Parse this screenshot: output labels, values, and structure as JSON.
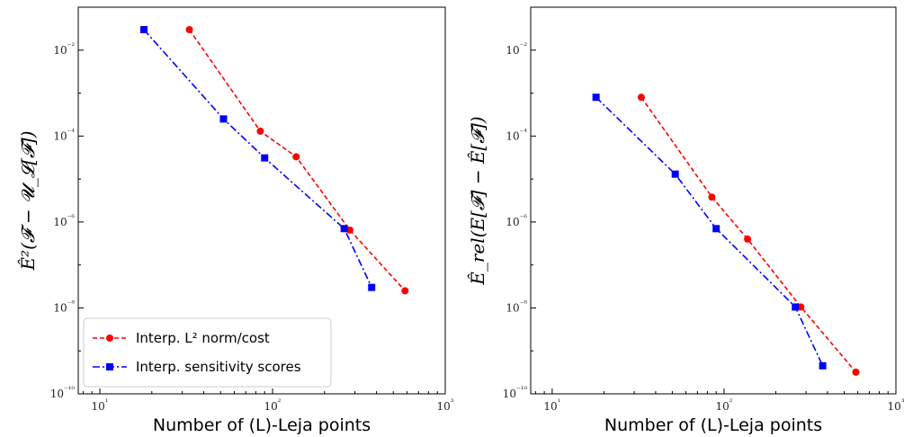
{
  "chart_data": [
    {
      "type": "line",
      "xlabel": "Number of (L)-Leja points",
      "ylabel": "Ê²(𝓕 − 𝓤_𝓛[𝓕])",
      "xscale": "log",
      "yscale": "log",
      "xlim": [
        7.5,
        1000
      ],
      "ylim": [
        1e-10,
        0.1
      ],
      "xticks": [
        "10¹",
        "10²",
        "10³"
      ],
      "yticks": [
        "10⁻¹⁰",
        "10⁻⁸",
        "10⁻⁶",
        "10⁻⁴",
        "10⁻²"
      ],
      "grid": false,
      "legend": "bottom-left",
      "series": [
        {
          "name": "Interp. L² norm/cost",
          "color": "#ff0000",
          "marker": "circle",
          "linestyle": "dashed",
          "x": [
            33,
            85,
            137,
            280,
            585
          ],
          "y": [
            0.03,
            0.00013,
            3.3e-05,
            6.5e-07,
            2.5e-08
          ]
        },
        {
          "name": "Interp. sensitivity scores",
          "color": "#0000ff",
          "marker": "square",
          "linestyle": "dashdot",
          "x": [
            18,
            52,
            90,
            260,
            375
          ],
          "y": [
            0.03,
            0.00025,
            3.1e-05,
            7e-07,
            3e-08
          ]
        }
      ]
    },
    {
      "type": "line",
      "xlabel": "Number of (L)-Leja points",
      "ylabel": "Ê_rel(E[𝓕] − Ê[𝓕])",
      "xscale": "log",
      "yscale": "log",
      "xlim": [
        7.5,
        1000
      ],
      "ylim": [
        1e-10,
        0.1
      ],
      "xticks": [
        "10¹",
        "10²",
        "10³"
      ],
      "yticks": [
        "10⁻¹⁰",
        "10⁻⁸",
        "10⁻⁶",
        "10⁻⁴",
        "10⁻²"
      ],
      "grid": false,
      "legend": "none",
      "series": [
        {
          "color": "#ff0000",
          "marker": "circle",
          "linestyle": "dashed",
          "x": [
            33,
            85,
            137,
            280,
            585
          ],
          "y": [
            0.0008,
            3.8e-06,
            4e-07,
            1.05e-08,
            3.2e-10
          ]
        },
        {
          "color": "#0000ff",
          "marker": "square",
          "linestyle": "dashdot",
          "x": [
            18,
            52,
            90,
            260,
            375
          ],
          "y": [
            0.0008,
            1.3e-05,
            7e-07,
            1.05e-08,
            4.5e-10
          ]
        }
      ]
    }
  ]
}
